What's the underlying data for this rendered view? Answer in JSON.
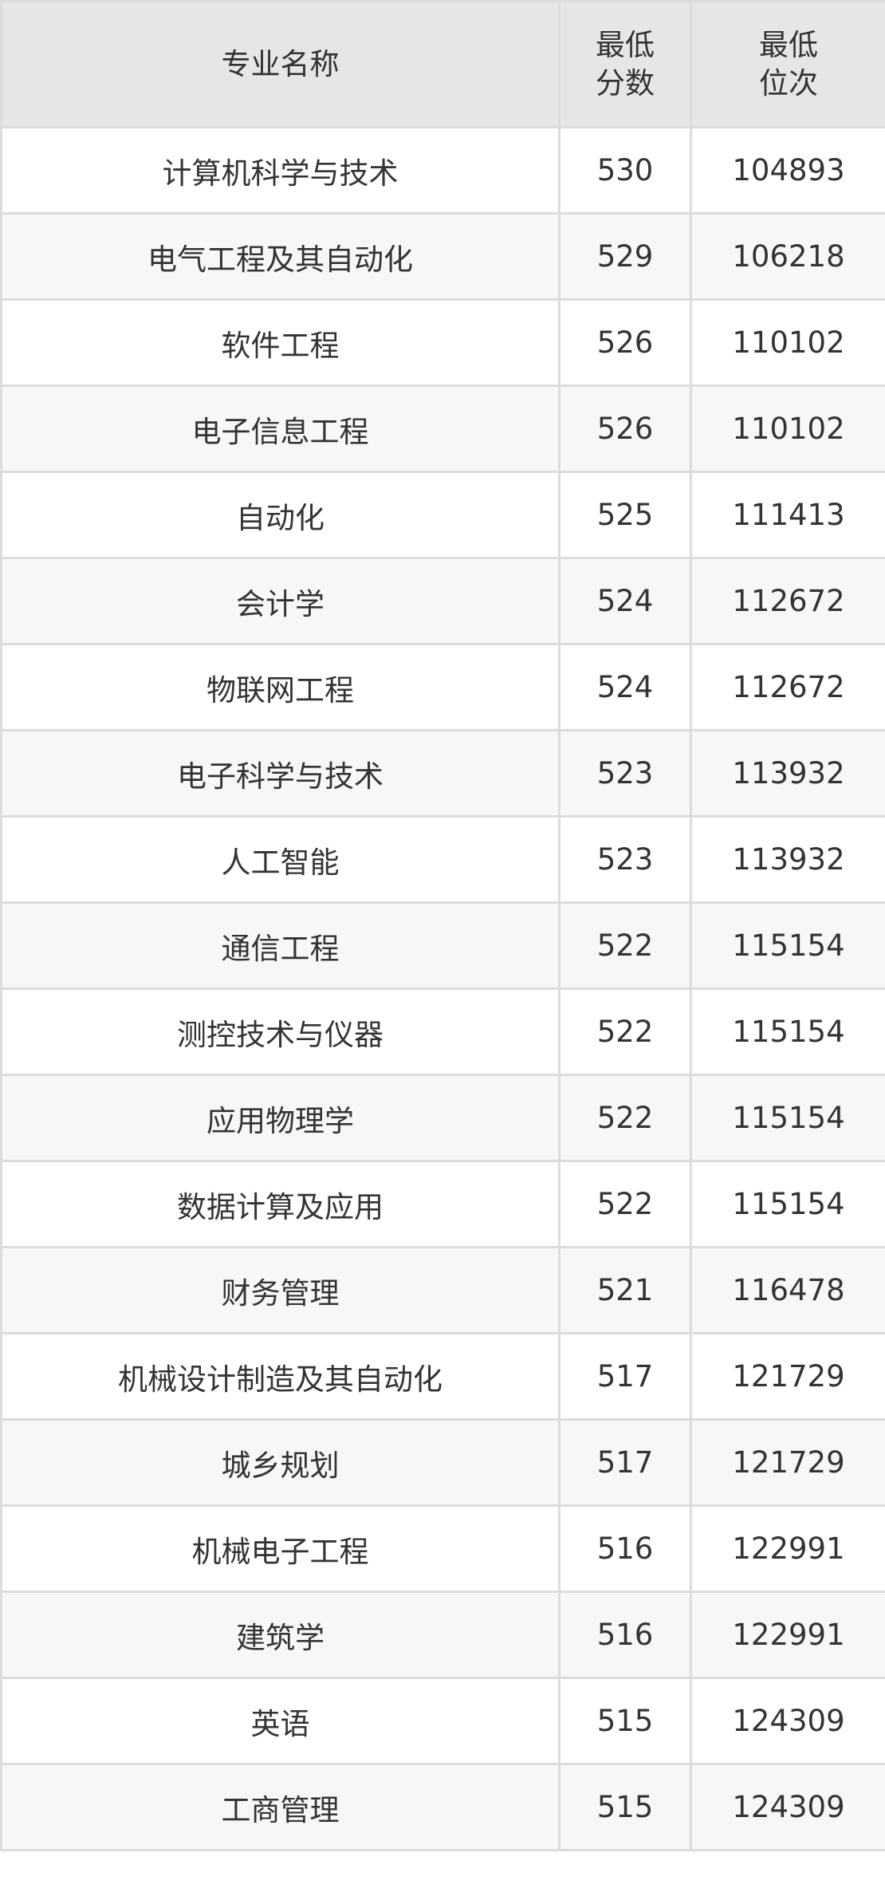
{
  "table": {
    "headers": {
      "major": "专业名称",
      "min_score_line1": "最低",
      "min_score_line2": "分数",
      "min_rank_line1": "最低",
      "min_rank_line2": "位次"
    },
    "rows": [
      {
        "major": "计算机科学与技术",
        "score": "530",
        "rank": "104893"
      },
      {
        "major": "电气工程及其自动化",
        "score": "529",
        "rank": "106218"
      },
      {
        "major": "软件工程",
        "score": "526",
        "rank": "110102"
      },
      {
        "major": "电子信息工程",
        "score": "526",
        "rank": "110102"
      },
      {
        "major": "自动化",
        "score": "525",
        "rank": "111413"
      },
      {
        "major": "会计学",
        "score": "524",
        "rank": "112672"
      },
      {
        "major": "物联网工程",
        "score": "524",
        "rank": "112672"
      },
      {
        "major": "电子科学与技术",
        "score": "523",
        "rank": "113932"
      },
      {
        "major": "人工智能",
        "score": "523",
        "rank": "113932"
      },
      {
        "major": "通信工程",
        "score": "522",
        "rank": "115154"
      },
      {
        "major": "测控技术与仪器",
        "score": "522",
        "rank": "115154"
      },
      {
        "major": "应用物理学",
        "score": "522",
        "rank": "115154"
      },
      {
        "major": "数据计算及应用",
        "score": "522",
        "rank": "115154"
      },
      {
        "major": "财务管理",
        "score": "521",
        "rank": "116478"
      },
      {
        "major": "机械设计制造及其自动化",
        "score": "517",
        "rank": "121729"
      },
      {
        "major": "城乡规划",
        "score": "517",
        "rank": "121729"
      },
      {
        "major": "机械电子工程",
        "score": "516",
        "rank": "122991"
      },
      {
        "major": "建筑学",
        "score": "516",
        "rank": "122991"
      },
      {
        "major": "英语",
        "score": "515",
        "rank": "124309"
      },
      {
        "major": "工商管理",
        "score": "515",
        "rank": "124309"
      }
    ]
  },
  "colors": {
    "header_bg": "#e6e6e6",
    "stripe_bg": "#f7f7f7",
    "border": "#dcdcdc",
    "text": "#333333"
  }
}
